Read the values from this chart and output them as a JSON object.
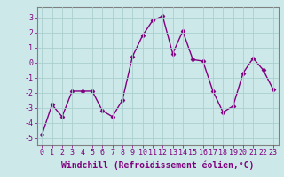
{
  "x": [
    0,
    1,
    2,
    3,
    4,
    5,
    6,
    7,
    8,
    9,
    10,
    11,
    12,
    13,
    14,
    15,
    16,
    17,
    18,
    19,
    20,
    21,
    22,
    23
  ],
  "y": [
    -4.8,
    -2.8,
    -3.6,
    -1.9,
    -1.9,
    -1.9,
    -3.2,
    -3.6,
    -2.5,
    0.4,
    1.8,
    2.8,
    3.1,
    0.6,
    2.1,
    0.2,
    0.1,
    -1.9,
    -3.3,
    -2.9,
    -0.7,
    0.3,
    -0.5,
    -1.8
  ],
  "line_color": "#800080",
  "marker": "D",
  "marker_size": 2.5,
  "bg_color": "#cce8e8",
  "grid_color": "#aacfcf",
  "xlabel": "Windchill (Refroidissement éolien,°C)",
  "ylim": [
    -5.5,
    3.7
  ],
  "xlim": [
    -0.5,
    23.5
  ],
  "yticks": [
    -5,
    -4,
    -3,
    -2,
    -1,
    0,
    1,
    2,
    3
  ],
  "xticks": [
    0,
    1,
    2,
    3,
    4,
    5,
    6,
    7,
    8,
    9,
    10,
    11,
    12,
    13,
    14,
    15,
    16,
    17,
    18,
    19,
    20,
    21,
    22,
    23
  ],
  "tick_label_size": 6,
  "xlabel_size": 7,
  "line_width": 1.0,
  "tick_color": "#800080",
  "spine_color": "#808080"
}
